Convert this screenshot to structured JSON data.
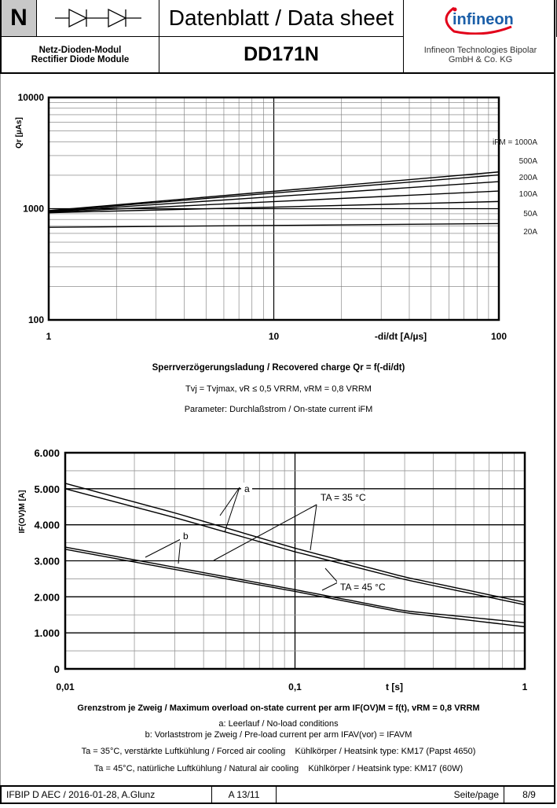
{
  "header": {
    "type_letter": "N",
    "title": "Datenblatt / Data sheet",
    "module_de": "Netz-Dioden-Modul",
    "module_en": "Rectifier Diode Module",
    "part_number": "DD171N",
    "company_line1": "Infineon Technologies Bipolar",
    "company_line2": "GmbH & Co. KG",
    "logo_text": "infineon",
    "symbol_icon": "two-diodes-in-series-icon"
  },
  "chart_data": [
    {
      "type": "line",
      "x_scale": "log",
      "y_scale": "log",
      "xlim": [
        1,
        100
      ],
      "ylim": [
        100,
        10000
      ],
      "xticks": [
        "1",
        "10",
        "100"
      ],
      "yticks": [
        "100",
        "1000",
        "10000"
      ],
      "xlabel": "-di/dt [A/µs]",
      "ylabel": "Qr [µAs]",
      "grid": true,
      "legend_title": "iFM = ",
      "series": [
        {
          "name": "1000A",
          "x": [
            1,
            100
          ],
          "y": [
            960,
            2140
          ]
        },
        {
          "name": "500A",
          "x": [
            1,
            100
          ],
          "y": [
            950,
            2010
          ]
        },
        {
          "name": "200A",
          "x": [
            1,
            100
          ],
          "y": [
            940,
            1750
          ]
        },
        {
          "name": "100A",
          "x": [
            1,
            100
          ],
          "y": [
            930,
            1440
          ]
        },
        {
          "name": "50A",
          "x": [
            1,
            100
          ],
          "y": [
            920,
            1160
          ]
        },
        {
          "name": "20A",
          "x": [
            1,
            100
          ],
          "y": [
            680,
            735
          ]
        }
      ],
      "title": "Sperrverzögerungsladung / Recovered charge Qr = f(-di/dt)",
      "conditions": "Tvj = Tvjmax, vR ≤ 0,5 VRRM, vRM = 0,8 VRRM",
      "parameter": "Parameter: Durchlaßstrom / On-state current iFM"
    },
    {
      "type": "line",
      "x_scale": "log",
      "y_scale": "linear",
      "xlim": [
        0.01,
        1
      ],
      "ylim": [
        0,
        6000
      ],
      "xticks": [
        "0,01",
        "0,1",
        "1"
      ],
      "yticks": [
        "0",
        "1.000",
        "2.000",
        "3.000",
        "4.000",
        "5.000",
        "6.000"
      ],
      "xlabel": "t [s]",
      "ylabel": "IF(OV)M [A]",
      "grid": true,
      "series": [
        {
          "curve": "a",
          "temp": "35",
          "x": [
            0.01,
            0.03,
            0.1,
            0.3,
            1
          ],
          "y": [
            5150,
            4330,
            3350,
            2550,
            1850
          ]
        },
        {
          "curve": "a",
          "temp": "45",
          "x": [
            0.01,
            0.03,
            0.1,
            0.3,
            1
          ],
          "y": [
            5000,
            4200,
            3250,
            2480,
            1780
          ]
        },
        {
          "curve": "b",
          "temp": "35",
          "x": [
            0.01,
            0.03,
            0.1,
            0.3,
            1
          ],
          "y": [
            3380,
            2820,
            2200,
            1610,
            1280
          ]
        },
        {
          "curve": "b",
          "temp": "45",
          "x": [
            0.01,
            0.03,
            0.1,
            0.3,
            1
          ],
          "y": [
            3320,
            2760,
            2150,
            1560,
            1170
          ]
        }
      ],
      "annotations": {
        "a": "a",
        "b": "b",
        "t35": "TA = 35 °C",
        "t45": "TA = 45 °C"
      },
      "title": "Grenzstrom je Zweig / Maximum overload on-state current per arm IF(OV)M = f(t), vRM = 0,8 VRRM",
      "note_a": "a: Leerlauf / No-load conditions",
      "note_b": "b: Vorlaststrom je Zweig / Pre-load current per arm IFAV(vor) = IFAVM",
      "cooling_35": "Ta = 35°C, verstärkte Luftkühlung / Forced air cooling    Kühlkörper / Heatsink type: KM17 (Papst 4650)",
      "cooling_45": "Ta = 45°C, natürliche Luftkühlung / Natural air cooling    Kühlkörper / Heatsink type: KM17 (60W)"
    }
  ],
  "footer": {
    "doc_ref": "IFBIP D AEC / 2016-01-28, A.Glunz",
    "revision": "A 13/11",
    "page_label": "Seite/page",
    "page_number": "8/9"
  }
}
